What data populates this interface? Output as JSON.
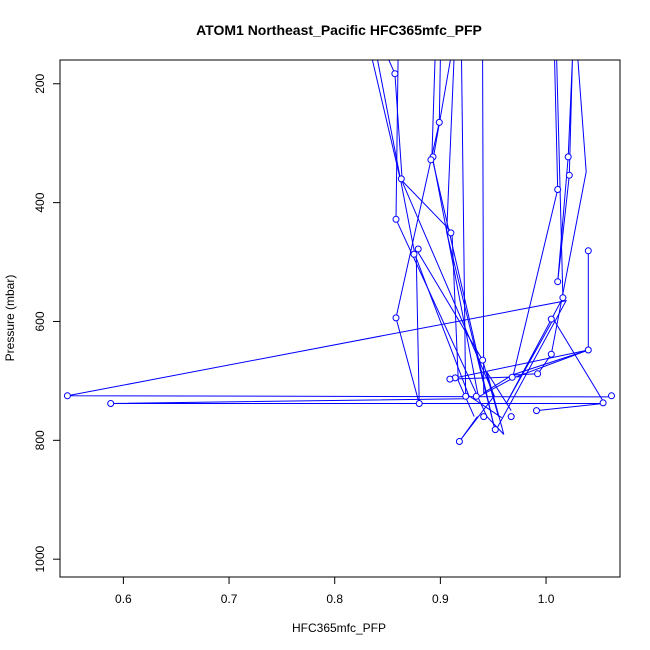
{
  "chart_data": {
    "type": "line",
    "title": "ATOM1 Northeast_Pacific HFC365mfc_PFP",
    "xlabel": "HFC365mfc_PFP",
    "ylabel": "Pressure (mbar)",
    "xlim": [
      0.54,
      1.07
    ],
    "ylim": [
      1030,
      160
    ],
    "y_reversed": true,
    "x_ticks": [
      "0.6",
      "0.7",
      "0.8",
      "0.9",
      "1.0"
    ],
    "y_ticks": [
      "200",
      "400",
      "600",
      "800",
      "1000"
    ],
    "marker": "open-circle",
    "line_color": "#0000ff",
    "segments": [
      {
        "name": "",
        "points": [
          [
            0.835,
            155
          ],
          [
            0.862,
            360
          ],
          [
            0.911,
            450
          ],
          [
            0.917,
            700
          ],
          [
            0.932,
            760
          ]
        ]
      },
      {
        "name": "",
        "points": [
          [
            0.84,
            155
          ],
          [
            0.876,
            488
          ],
          [
            0.927,
            725
          ],
          [
            0.958,
            762
          ]
        ]
      },
      {
        "name": "",
        "points": [
          [
            0.85,
            155
          ],
          [
            0.857,
            183
          ],
          [
            0.864,
            365
          ],
          [
            0.951,
            725
          ],
          [
            0.918,
            802
          ],
          [
            0.935,
            760
          ]
        ]
      },
      {
        "name": "",
        "points": [
          [
            0.86,
            155
          ],
          [
            0.858,
            428
          ],
          [
            0.944,
            760
          ],
          [
            0.96,
            790
          ],
          [
            0.944,
            685
          ],
          [
            0.967,
            750
          ]
        ]
      },
      {
        "name": "",
        "points": [
          [
            0.895,
            155
          ],
          [
            0.892,
            323
          ],
          [
            0.951,
            778
          ]
        ]
      },
      {
        "name": "",
        "points": [
          [
            0.9,
            155
          ],
          [
            0.899,
            265
          ],
          [
            0.858,
            594
          ],
          [
            0.88,
            738
          ],
          [
            0.877,
            478
          ],
          [
            0.94,
            665
          ],
          [
            0.955,
            760
          ]
        ]
      },
      {
        "name": "",
        "points": [
          [
            0.91,
            155
          ],
          [
            0.893,
            328
          ],
          [
            0.936,
            727
          ],
          [
            0.969,
            695
          ],
          [
            1.04,
            648
          ],
          [
            0.914,
            695
          ],
          [
            0.909,
            697
          ],
          [
            0.976,
            693
          ]
        ]
      },
      {
        "name": "",
        "points": [
          [
            0.913,
            155
          ],
          [
            0.906,
            450
          ],
          [
            0.952,
            785
          ],
          [
            1.019,
            565
          ],
          [
            0.547,
            725
          ],
          [
            1.058,
            727
          ],
          [
            1.062,
            725
          ]
        ]
      },
      {
        "name": "",
        "points": [
          [
            0.92,
            155
          ],
          [
            0.924,
            730
          ],
          [
            0.588,
            738
          ],
          [
            1.054,
            738
          ],
          [
            0.991,
            750
          ]
        ]
      },
      {
        "name": "",
        "points": [
          [
            0.94,
            155
          ],
          [
            0.941,
            720
          ],
          [
            0.968,
            690
          ],
          [
            1.04,
            648
          ],
          [
            1.04,
            481
          ]
        ]
      },
      {
        "name": "",
        "points": [
          [
            1.008,
            155
          ],
          [
            1.011,
            378
          ],
          [
            0.969,
            690
          ],
          [
            0.992,
            688
          ]
        ]
      },
      {
        "name": "",
        "points": [
          [
            1.025,
            155
          ],
          [
            1.021,
            323
          ],
          [
            1.011,
            533
          ],
          [
            1.022,
            354
          ],
          [
            1.025,
            155
          ]
        ]
      },
      {
        "name": "",
        "points": [
          [
            1.01,
            155
          ],
          [
            1.016,
            560
          ],
          [
            0.962,
            739
          ],
          [
            1.007,
            596
          ],
          [
            1.054,
            734
          ]
        ]
      },
      {
        "name": "",
        "points": [
          [
            1.03,
            155
          ],
          [
            1.038,
            348
          ],
          [
            1.005,
            655
          ],
          [
            0.992,
            689
          ]
        ]
      }
    ],
    "circles": [
      [
        0.857,
        183
      ],
      [
        0.899,
        265
      ],
      [
        0.893,
        323
      ],
      [
        0.891,
        328
      ],
      [
        1.021,
        323
      ],
      [
        1.022,
        354
      ],
      [
        0.863,
        360
      ],
      [
        1.011,
        378
      ],
      [
        0.858,
        428
      ],
      [
        0.91,
        451
      ],
      [
        0.879,
        478
      ],
      [
        0.875,
        487
      ],
      [
        1.04,
        481
      ],
      [
        1.011,
        533
      ],
      [
        1.016,
        560
      ],
      [
        0.858,
        594
      ],
      [
        1.005,
        596
      ],
      [
        1.04,
        648
      ],
      [
        1.005,
        655
      ],
      [
        0.94,
        665
      ],
      [
        0.992,
        688
      ],
      [
        0.914,
        695
      ],
      [
        0.909,
        697
      ],
      [
        0.968,
        694
      ],
      [
        0.547,
        725
      ],
      [
        0.924,
        726
      ],
      [
        0.934,
        726
      ],
      [
        1.062,
        725
      ],
      [
        0.588,
        738
      ],
      [
        0.88,
        738
      ],
      [
        1.054,
        737
      ],
      [
        0.991,
        750
      ],
      [
        0.941,
        760
      ],
      [
        0.967,
        760
      ],
      [
        0.952,
        782
      ],
      [
        0.918,
        802
      ]
    ],
    "grid": false,
    "legend": "none"
  }
}
